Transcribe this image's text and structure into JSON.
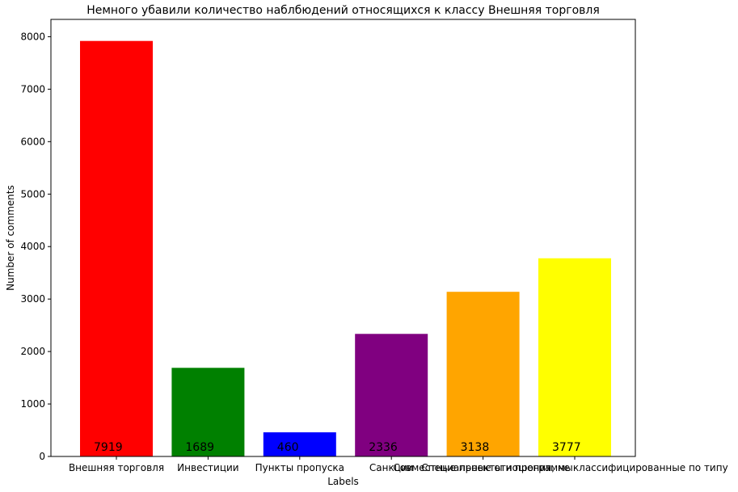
{
  "chart_data": {
    "type": "bar",
    "title": "Немного убавили количество наблбюдений относящихся к классу Внешняя торговля",
    "xlabel": "Labels",
    "ylabel": "Number of comments",
    "categories": [
      "Внешняя торговля",
      "Инвестиции",
      "Пункты пропуска",
      "Санкции",
      "Совместные проекты и программы",
      "Специальные отношения, не классифицированные по типу"
    ],
    "values": [
      7919,
      1689,
      460,
      2336,
      3138,
      3777
    ],
    "value_labels": [
      "7919",
      "1689",
      "460",
      "2336",
      "3138",
      "3777"
    ],
    "colors": [
      "#ff0000",
      "#008000",
      "#0000ff",
      "#800080",
      "#ffa500",
      "#ffff00"
    ],
    "ylim": [
      0,
      8330
    ],
    "yticks": [
      0,
      1000,
      2000,
      3000,
      4000,
      5000,
      6000,
      7000,
      8000
    ],
    "ytick_labels": [
      "0",
      "1000",
      "2000",
      "3000",
      "4000",
      "5000",
      "6000",
      "7000",
      "8000"
    ],
    "grid": false,
    "legend": false
  }
}
